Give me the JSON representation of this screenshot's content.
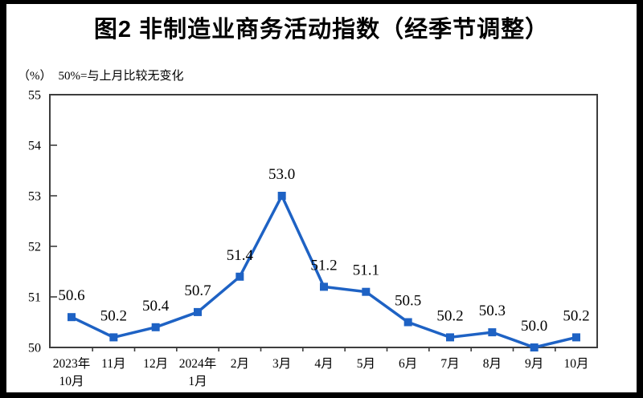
{
  "header": {
    "title": "图2 非制造业商务活动指数（经季节调整）"
  },
  "chart_data": {
    "type": "line",
    "title": "图2 非制造业商务活动指数（经季节调整）",
    "unit_label": "（%）",
    "note": "50%=与上月比较无变化",
    "categories": [
      "2023年\n10月",
      "11月",
      "12月",
      "2024年\n1月",
      "2月",
      "3月",
      "4月",
      "5月",
      "6月",
      "7月",
      "8月",
      "9月",
      "10月"
    ],
    "values": [
      50.6,
      50.2,
      50.4,
      50.7,
      51.4,
      53.0,
      51.2,
      51.1,
      50.5,
      50.2,
      50.3,
      50.0,
      50.2
    ],
    "value_labels": [
      "50.6",
      "50.2",
      "50.4",
      "50.7",
      "51.4",
      "53.0",
      "51.2",
      "51.1",
      "50.5",
      "50.2",
      "50.3",
      "50.0",
      "50.2"
    ],
    "ylim": [
      50,
      55
    ],
    "yticks": [
      50,
      51,
      52,
      53,
      54,
      55
    ],
    "grid": false,
    "legend_position": "none",
    "marker_shape": "square",
    "line_color": "#1E62C4",
    "axis_color": "#3D3D3D",
    "text_color": "#000000",
    "frame_color": "#000000"
  }
}
